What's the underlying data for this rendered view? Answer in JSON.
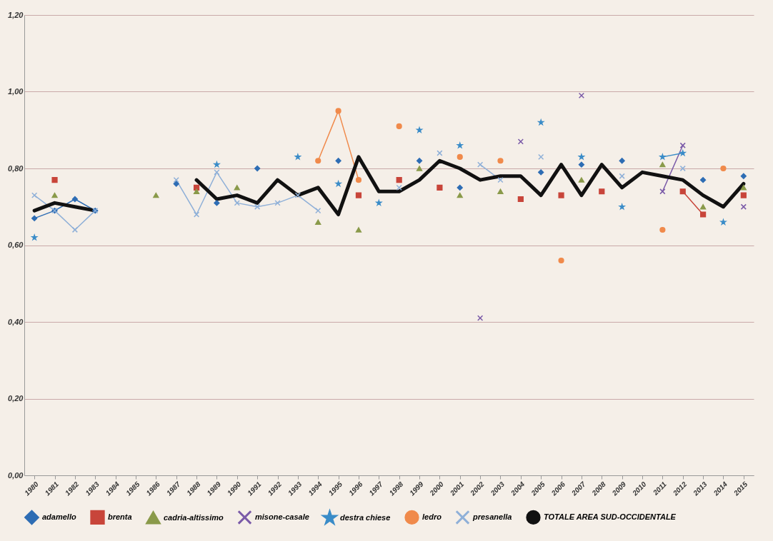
{
  "chart_data": {
    "type": "line",
    "categories": [
      "1980",
      "1981",
      "1982",
      "1983",
      "1984",
      "1985",
      "1986",
      "1987",
      "1988",
      "1989",
      "1990",
      "1991",
      "1992",
      "1993",
      "1994",
      "1995",
      "1996",
      "1997",
      "1998",
      "1999",
      "2000",
      "2001",
      "2002",
      "2003",
      "2004",
      "2005",
      "2006",
      "2007",
      "2008",
      "2009",
      "2010",
      "2011",
      "2012",
      "2013",
      "2014",
      "2015"
    ],
    "series": [
      {
        "name": "adamello",
        "color": "#2e6db4",
        "marker": "diamond",
        "values": [
          0.67,
          0.69,
          0.72,
          0.69,
          null,
          null,
          null,
          0.76,
          null,
          0.71,
          null,
          0.8,
          null,
          null,
          null,
          0.82,
          null,
          null,
          null,
          0.82,
          null,
          0.75,
          null,
          null,
          null,
          0.79,
          null,
          0.81,
          null,
          0.82,
          null,
          null,
          null,
          0.77,
          null,
          0.78
        ]
      },
      {
        "name": "brenta",
        "color": "#c8453a",
        "marker": "square",
        "values": [
          null,
          0.77,
          null,
          null,
          null,
          null,
          null,
          null,
          0.75,
          null,
          null,
          null,
          null,
          null,
          null,
          null,
          0.73,
          null,
          0.77,
          null,
          0.75,
          null,
          null,
          null,
          0.72,
          null,
          0.73,
          null,
          0.74,
          null,
          null,
          null,
          0.74,
          0.68,
          null,
          0.73
        ]
      },
      {
        "name": "cadria-altissimo",
        "color": "#8a9a4a",
        "marker": "triangle",
        "values": [
          null,
          0.73,
          null,
          null,
          null,
          null,
          0.73,
          null,
          0.74,
          null,
          0.75,
          null,
          null,
          null,
          0.66,
          null,
          0.64,
          null,
          null,
          0.8,
          null,
          0.73,
          null,
          0.74,
          null,
          null,
          null,
          0.77,
          null,
          null,
          null,
          0.81,
          null,
          0.7,
          null,
          0.75
        ]
      },
      {
        "name": "misone-casale",
        "color": "#7a5aa8",
        "marker": "cross",
        "values": [
          null,
          null,
          null,
          null,
          null,
          null,
          null,
          null,
          null,
          null,
          null,
          null,
          null,
          null,
          null,
          null,
          null,
          null,
          null,
          null,
          null,
          null,
          0.41,
          null,
          0.87,
          null,
          null,
          0.99,
          null,
          null,
          null,
          0.74,
          0.86,
          null,
          null,
          0.7
        ]
      },
      {
        "name": "destra chiese",
        "color": "#3a8cc8",
        "marker": "star",
        "values": [
          0.62,
          null,
          null,
          null,
          null,
          null,
          null,
          null,
          null,
          0.81,
          null,
          null,
          null,
          0.83,
          null,
          0.76,
          null,
          0.71,
          null,
          0.9,
          null,
          0.86,
          null,
          null,
          null,
          0.92,
          null,
          0.83,
          null,
          0.7,
          null,
          0.83,
          0.84,
          null,
          0.66,
          null
        ]
      },
      {
        "name": "ledro",
        "color": "#f08a4b",
        "marker": "circle",
        "values": [
          null,
          null,
          null,
          null,
          null,
          null,
          null,
          null,
          null,
          null,
          null,
          null,
          null,
          null,
          0.82,
          0.95,
          0.77,
          null,
          0.91,
          null,
          null,
          0.83,
          null,
          0.82,
          null,
          null,
          0.56,
          null,
          null,
          null,
          null,
          0.64,
          null,
          null,
          0.8,
          null
        ]
      },
      {
        "name": "presanella",
        "color": "#8fb0d8",
        "marker": "cross",
        "values": [
          0.73,
          0.69,
          0.64,
          0.69,
          null,
          null,
          null,
          0.77,
          0.68,
          0.79,
          0.71,
          0.7,
          0.71,
          0.73,
          0.69,
          null,
          null,
          null,
          0.75,
          null,
          0.84,
          null,
          0.81,
          0.77,
          null,
          0.83,
          null,
          null,
          null,
          0.78,
          null,
          null,
          0.8,
          null,
          null,
          null
        ]
      },
      {
        "name": "TOTALE AREA SUD-OCCIDENTALE",
        "color": "#111111",
        "marker": "none",
        "values": [
          0.69,
          0.71,
          0.7,
          0.69,
          null,
          null,
          null,
          null,
          0.77,
          0.72,
          0.73,
          0.71,
          0.77,
          0.73,
          0.75,
          0.68,
          0.83,
          0.74,
          0.74,
          0.77,
          0.82,
          0.8,
          0.77,
          0.78,
          0.78,
          0.73,
          0.81,
          0.73,
          0.81,
          0.75,
          0.79,
          0.78,
          0.77,
          0.73,
          0.7,
          0.76
        ]
      }
    ],
    "ylim": [
      0,
      1.2
    ],
    "yticks": [
      {
        "value": 0,
        "label": "0,00"
      },
      {
        "value": 0.2,
        "label": "0,20"
      },
      {
        "value": 0.4,
        "label": "0,40"
      },
      {
        "value": 0.6,
        "label": "0,60"
      },
      {
        "value": 0.8,
        "label": "0,80"
      },
      {
        "value": 1,
        "label": "1,00"
      },
      {
        "value": 1.2,
        "label": "1,20"
      }
    ],
    "grid": "y",
    "legend": "bottom"
  }
}
